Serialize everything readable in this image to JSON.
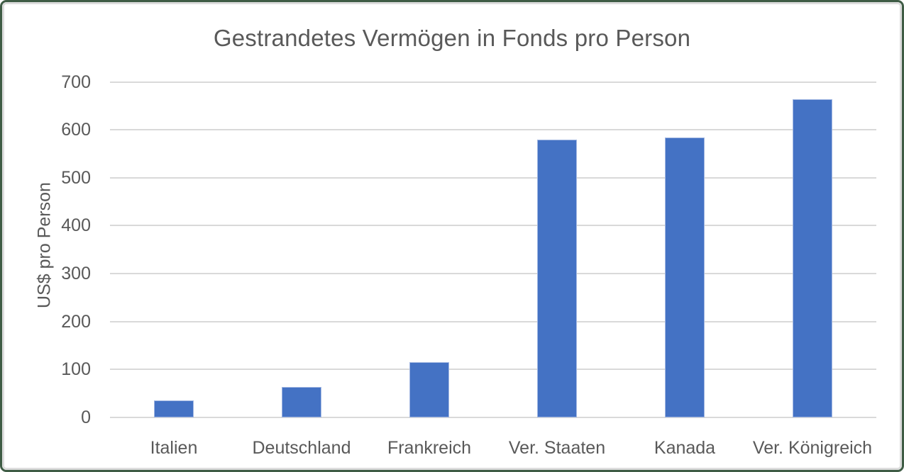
{
  "frame": {
    "border_color": "#3F5C45",
    "ring_color": "#DDDDDD",
    "background": "#FFFFFF"
  },
  "chart_data": {
    "type": "bar",
    "title": "Gestrandetes Vermögen in Fonds pro Person",
    "ylabel": "US$ pro Person",
    "xlabel": "",
    "categories": [
      "Italien",
      "Deutschland",
      "Frankreich",
      "Ver. Staaten",
      "Kanada",
      "Ver. Königreich"
    ],
    "values": [
      35,
      63,
      116,
      580,
      584,
      664
    ],
    "ylim": [
      0,
      700
    ],
    "yticks": [
      0,
      100,
      200,
      300,
      400,
      500,
      600,
      700
    ],
    "grid": true,
    "legend": "none",
    "bar_color": "#4472C4",
    "bar_border_color": "#A3B8E2",
    "gridline_color": "#D9D9D9",
    "text_color": "#595959"
  }
}
